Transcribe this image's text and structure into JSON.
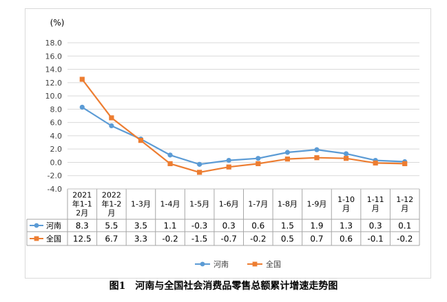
{
  "chart_data": {
    "type": "line",
    "unit_label": "(%)",
    "categories": [
      [
        "2021",
        "年1-1",
        "2月"
      ],
      [
        "2022",
        "年1-2",
        "月"
      ],
      [
        "1-3月"
      ],
      [
        "1-4月"
      ],
      [
        "1-5月"
      ],
      [
        "1-6月"
      ],
      [
        "1-7月"
      ],
      [
        "1-8月"
      ],
      [
        "1-9月"
      ],
      [
        "1-10",
        "月"
      ],
      [
        "1-11",
        "月"
      ],
      [
        "1-12",
        "月"
      ]
    ],
    "ylim": [
      -4.0,
      18.0
    ],
    "yticks": [
      "-4.0",
      "-2.0",
      "0.0",
      "2.0",
      "4.0",
      "6.0",
      "8.0",
      "10.0",
      "12.0",
      "14.0",
      "16.0",
      "18.0"
    ],
    "grid": true,
    "legend_position": "bottom",
    "series": [
      {
        "name": "河南",
        "color": "#5b9bd5",
        "marker": "circle",
        "values": [
          8.3,
          5.5,
          3.5,
          1.1,
          -0.3,
          0.3,
          0.6,
          1.5,
          1.9,
          1.3,
          0.3,
          0.1
        ],
        "labels": [
          "8.3",
          "5.5",
          "3.5",
          "1.1",
          "-0.3",
          "0.3",
          "0.6",
          "1.5",
          "1.9",
          "1.3",
          "0.3",
          "0.1"
        ]
      },
      {
        "name": "全国",
        "color": "#ed7d31",
        "marker": "square",
        "values": [
          12.5,
          6.7,
          3.3,
          -0.2,
          -1.5,
          -0.7,
          -0.2,
          0.5,
          0.7,
          0.6,
          -0.1,
          -0.2
        ],
        "labels": [
          "12.5",
          "6.7",
          "3.3",
          "-0.2",
          "-1.5",
          "-0.7",
          "-0.2",
          "0.5",
          "0.7",
          "0.6",
          "-0.1",
          "-0.2"
        ]
      }
    ]
  },
  "caption": "图1　河南与全国社会消费品零售总额累计增速走势图"
}
